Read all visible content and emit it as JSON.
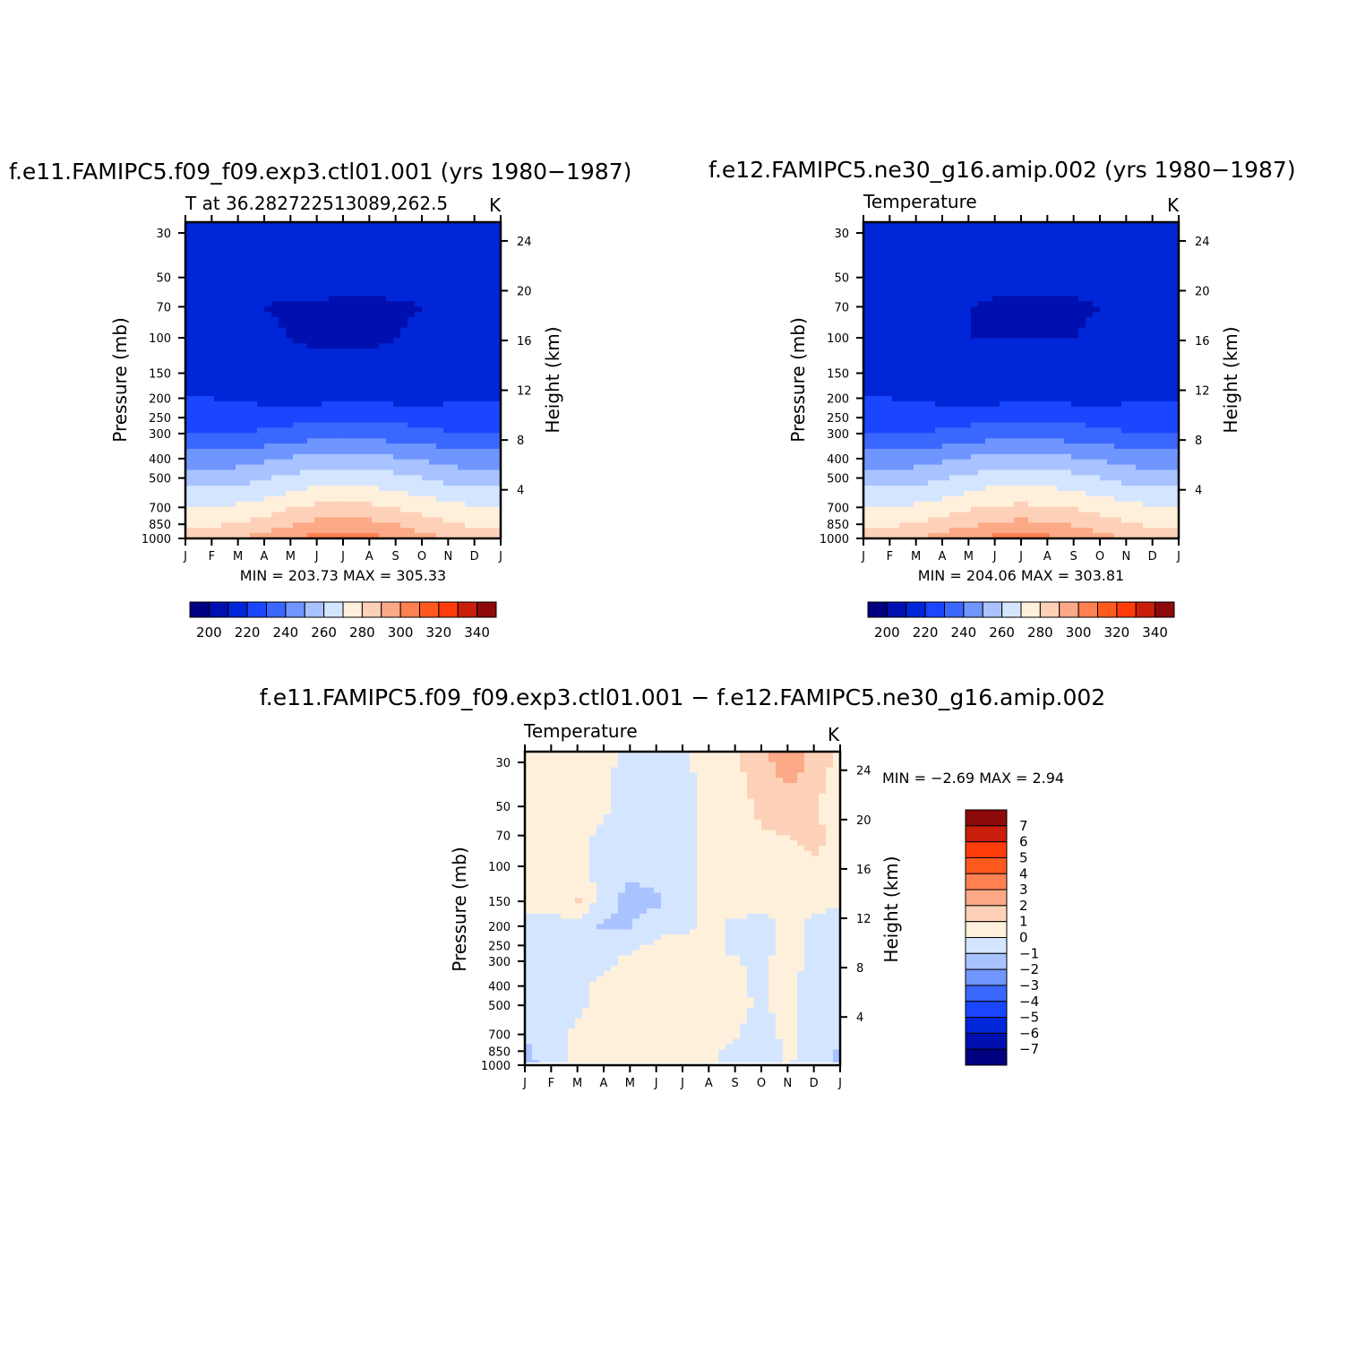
{
  "chart_data": [
    {
      "type": "contour",
      "title": "f.e11.FAMIPC5.f09_f09.exp3.ctl01.001 (yrs 1980−1987)",
      "subtitle_left": "T at 36.282722513089,262.5",
      "subtitle_right": "K",
      "ylabel": "Pressure (mb)",
      "ylabel_right": "Height (km)",
      "x_ticks": [
        "J",
        "F",
        "M",
        "A",
        "M",
        "J",
        "J",
        "A",
        "S",
        "O",
        "N",
        "D",
        "J"
      ],
      "y_ticks": [
        "30",
        "50",
        "70",
        "100",
        "150",
        "200",
        "250",
        "300",
        "400",
        "500",
        "700",
        "850",
        "1000"
      ],
      "y_right_ticks": [
        "24",
        "20",
        "16",
        "12",
        "8",
        "4"
      ],
      "stats": "MIN = 203.73 MAX = 305.33",
      "min": 203.73,
      "max": 305.33,
      "colorbar_labels": [
        "200",
        "220",
        "240",
        "260",
        "280",
        "300",
        "320",
        "340"
      ],
      "contour_levels": [
        195,
        200,
        205,
        210,
        215,
        220,
        225,
        230,
        235,
        240,
        245,
        250,
        255,
        260,
        265,
        270,
        275,
        280,
        285,
        290,
        295,
        300,
        305
      ],
      "profile": [
        {
          "p": 30,
          "values": [
            214,
            214,
            214,
            214,
            214,
            213,
            213,
            213,
            214,
            214,
            214,
            214,
            214
          ]
        },
        {
          "p": 50,
          "values": [
            211,
            211,
            210,
            208,
            208,
            208,
            207,
            207,
            208,
            209,
            210,
            211,
            211
          ]
        },
        {
          "p": 70,
          "values": [
            207,
            206,
            207,
            205,
            204,
            204,
            204,
            204,
            204,
            205,
            206,
            207,
            207
          ]
        },
        {
          "p": 100,
          "values": [
            210,
            209,
            208,
            206,
            205,
            204,
            204,
            204,
            205,
            206,
            207,
            208,
            209
          ]
        },
        {
          "p": 150,
          "values": [
            212,
            212,
            211,
            209,
            207,
            207,
            207,
            207,
            207,
            208,
            209,
            210,
            212
          ]
        },
        {
          "p": 200,
          "values": [
            215,
            215,
            214,
            213,
            212,
            212,
            212,
            212,
            212,
            212,
            213,
            214,
            215
          ]
        },
        {
          "p": 250,
          "values": [
            219,
            219,
            219,
            219,
            221,
            222,
            223,
            223,
            222,
            221,
            220,
            219,
            219
          ]
        },
        {
          "p": 300,
          "values": [
            225,
            225,
            225,
            227,
            229,
            231,
            232,
            231,
            230,
            228,
            226,
            225,
            225
          ]
        },
        {
          "p": 400,
          "values": [
            239,
            239,
            240,
            243,
            246,
            248,
            249,
            248,
            246,
            244,
            241,
            239,
            239
          ]
        },
        {
          "p": 500,
          "values": [
            250,
            250,
            251,
            254,
            257,
            260,
            261,
            260,
            258,
            255,
            252,
            250,
            250
          ]
        },
        {
          "p": 700,
          "values": [
            265,
            265,
            267,
            270,
            274,
            277,
            278,
            277,
            274,
            271,
            268,
            266,
            265
          ]
        },
        {
          "p": 850,
          "values": [
            273,
            273,
            276,
            279,
            284,
            288,
            289,
            288,
            285,
            280,
            276,
            274,
            273
          ]
        },
        {
          "p": 1000,
          "values": [
            280,
            281,
            284,
            289,
            294,
            298,
            300,
            298,
            294,
            289,
            284,
            281,
            280
          ]
        }
      ]
    },
    {
      "type": "contour",
      "title": "f.e12.FAMIPC5.ne30_g16.amip.002 (yrs 1980−1987)",
      "subtitle_left": "Temperature",
      "subtitle_right": "K",
      "ylabel": "Pressure (mb)",
      "ylabel_right": "Height (km)",
      "x_ticks": [
        "J",
        "F",
        "M",
        "A",
        "M",
        "J",
        "J",
        "A",
        "S",
        "O",
        "N",
        "D",
        "J"
      ],
      "y_ticks": [
        "30",
        "50",
        "70",
        "100",
        "150",
        "200",
        "250",
        "300",
        "400",
        "500",
        "700",
        "850",
        "1000"
      ],
      "y_right_ticks": [
        "24",
        "20",
        "16",
        "12",
        "8",
        "4"
      ],
      "stats": "MIN = 204.06 MAX = 303.81",
      "min": 204.06,
      "max": 303.81,
      "colorbar_labels": [
        "200",
        "220",
        "240",
        "260",
        "280",
        "300",
        "320",
        "340"
      ],
      "contour_levels": [
        195,
        200,
        205,
        210,
        215,
        220,
        225,
        230,
        235,
        240,
        245,
        250,
        255,
        260,
        265,
        270,
        275,
        280,
        285,
        290,
        295,
        300,
        305
      ],
      "profile": [
        {
          "p": 30,
          "values": [
            214,
            214,
            214,
            214,
            214,
            213,
            213,
            213,
            214,
            214,
            214,
            214,
            214
          ]
        },
        {
          "p": 50,
          "values": [
            210,
            210,
            209,
            208,
            208,
            207,
            207,
            207,
            207,
            208,
            209,
            209,
            210
          ]
        },
        {
          "p": 70,
          "values": [
            206,
            206,
            206,
            205,
            205,
            204,
            204,
            204,
            204,
            205,
            205,
            206,
            206
          ]
        },
        {
          "p": 100,
          "values": [
            210,
            209,
            209,
            207,
            205,
            205,
            205,
            205,
            205,
            206,
            207,
            208,
            209
          ]
        },
        {
          "p": 150,
          "values": [
            212,
            212,
            212,
            210,
            208,
            207,
            207,
            207,
            207,
            208,
            209,
            210,
            212
          ]
        },
        {
          "p": 200,
          "values": [
            215,
            215,
            214,
            213,
            212,
            212,
            212,
            212,
            212,
            212,
            213,
            214,
            215
          ]
        },
        {
          "p": 250,
          "values": [
            219,
            219,
            219,
            219,
            221,
            222,
            223,
            223,
            222,
            221,
            220,
            219,
            219
          ]
        },
        {
          "p": 300,
          "values": [
            225,
            225,
            225,
            227,
            229,
            231,
            232,
            231,
            230,
            228,
            226,
            225,
            225
          ]
        },
        {
          "p": 400,
          "values": [
            239,
            239,
            240,
            243,
            246,
            248,
            249,
            248,
            246,
            244,
            241,
            239,
            239
          ]
        },
        {
          "p": 500,
          "values": [
            250,
            250,
            251,
            254,
            257,
            260,
            261,
            260,
            258,
            255,
            252,
            250,
            250
          ]
        },
        {
          "p": 700,
          "values": [
            265,
            265,
            267,
            270,
            274,
            276,
            277,
            276,
            274,
            271,
            268,
            266,
            265
          ]
        },
        {
          "p": 850,
          "values": [
            273,
            273,
            276,
            279,
            283,
            287,
            288,
            287,
            284,
            280,
            276,
            274,
            273
          ]
        },
        {
          "p": 1000,
          "values": [
            280,
            281,
            284,
            289,
            293,
            297,
            298,
            297,
            293,
            289,
            284,
            281,
            280
          ]
        }
      ]
    },
    {
      "type": "contour",
      "title": "f.e11.FAMIPC5.f09_f09.exp3.ctl01.001 − f.e12.FAMIPC5.ne30_g16.amip.002",
      "subtitle_left": "Temperature",
      "subtitle_right": "K",
      "ylabel": "Pressure (mb)",
      "ylabel_right": "Height (km)",
      "x_ticks": [
        "J",
        "F",
        "M",
        "A",
        "M",
        "J",
        "J",
        "A",
        "S",
        "O",
        "N",
        "D",
        "J"
      ],
      "y_ticks": [
        "30",
        "50",
        "70",
        "100",
        "150",
        "200",
        "250",
        "300",
        "400",
        "500",
        "700",
        "850",
        "1000"
      ],
      "y_right_ticks": [
        "24",
        "20",
        "16",
        "12",
        "8",
        "4"
      ],
      "stats": "MIN =  −2.69 MAX =    2.94",
      "min": -2.69,
      "max": 2.94,
      "colorbar_labels": [
        "7",
        "6",
        "5",
        "4",
        "3",
        "2",
        "1",
        "0",
        "−1",
        "−2",
        "−3",
        "−4",
        "−5",
        "−6",
        "−7"
      ],
      "contour_levels": [
        -7,
        -6,
        -5,
        -4,
        -3,
        -2,
        -1,
        0,
        1,
        2,
        3,
        4,
        5,
        6,
        7
      ],
      "profile": [
        {
          "p": 30,
          "values": [
            0.5,
            0.6,
            0.5,
            0.3,
            -0.4,
            -0.5,
            -0.3,
            0.5,
            0.8,
            1.6,
            2.6,
            1.8,
            0.5
          ]
        },
        {
          "p": 50,
          "values": [
            0.3,
            0.5,
            0.9,
            0.2,
            -0.5,
            -0.6,
            -0.4,
            0.3,
            0.6,
            1.2,
            1.5,
            1.1,
            0.4
          ]
        },
        {
          "p": 70,
          "values": [
            0.4,
            0.5,
            0.4,
            -0.3,
            -0.6,
            -0.5,
            -0.3,
            0.2,
            0.6,
            0.9,
            1.0,
            1.2,
            0.8
          ]
        },
        {
          "p": 100,
          "values": [
            0.5,
            0.4,
            0.5,
            -0.5,
            -0.8,
            -0.6,
            -0.3,
            0.3,
            0.5,
            0.8,
            0.6,
            0.9,
            0.6
          ]
        },
        {
          "p": 150,
          "values": [
            0.3,
            0.4,
            1.1,
            -0.6,
            -1.3,
            -1.2,
            -0.4,
            0.2,
            0.4,
            0.6,
            0.4,
            0.3,
            0.2
          ]
        },
        {
          "p": 200,
          "values": [
            -0.3,
            -0.4,
            -0.3,
            -1.2,
            -1.1,
            -0.3,
            -0.2,
            0.2,
            -0.2,
            -0.5,
            0.3,
            -0.3,
            -0.5
          ]
        },
        {
          "p": 250,
          "values": [
            -0.6,
            -0.5,
            -0.4,
            -0.6,
            -0.3,
            0.2,
            0.3,
            0.2,
            -0.2,
            -0.4,
            0.4,
            -0.4,
            -0.6
          ]
        },
        {
          "p": 300,
          "values": [
            -0.9,
            -0.6,
            -0.4,
            -0.3,
            0.3,
            0.4,
            0.3,
            0.2,
            0.1,
            -0.3,
            0.6,
            -0.5,
            -0.8
          ]
        },
        {
          "p": 400,
          "values": [
            -1.0,
            -0.5,
            -0.3,
            0.3,
            0.4,
            0.5,
            0.3,
            0.3,
            0.2,
            -0.2,
            0.3,
            -0.4,
            -0.9
          ]
        },
        {
          "p": 500,
          "values": [
            -0.9,
            -0.4,
            -0.2,
            0.4,
            0.5,
            0.4,
            0.3,
            0.4,
            0.2,
            -0.1,
            0.3,
            -0.3,
            -0.9
          ]
        },
        {
          "p": 700,
          "values": [
            -0.8,
            -0.3,
            0.2,
            0.4,
            0.5,
            0.4,
            0.3,
            0.3,
            0.1,
            -0.4,
            0.2,
            -0.3,
            -0.8
          ]
        },
        {
          "p": 850,
          "values": [
            -1.2,
            -0.5,
            0.3,
            0.4,
            0.5,
            0.3,
            0.4,
            0.3,
            -0.3,
            -0.5,
            0.2,
            -0.4,
            -1.1
          ]
        },
        {
          "p": 1000,
          "values": [
            -1.4,
            -0.6,
            0.2,
            0.3,
            0.4,
            0.2,
            0.6,
            0.3,
            -0.4,
            -0.5,
            0.1,
            -0.6,
            -1.3
          ]
        }
      ]
    }
  ],
  "colors": {
    "abs_colorbar": [
      "#000080",
      "#0010b0",
      "#0026d8",
      "#1a46ff",
      "#3a68ff",
      "#6f95ff",
      "#a8c3ff",
      "#d4e6ff",
      "#fff0dc",
      "#fdd1b8",
      "#fca987",
      "#ff8050",
      "#ff5a1e",
      "#ff3c0a",
      "#c81e0a",
      "#8c0a0a"
    ],
    "diff_colorbar": [
      "#8c0a0a",
      "#c81e0a",
      "#ff3c0a",
      "#ff5a1e",
      "#ff8050",
      "#fca987",
      "#fdd1b8",
      "#fff0dc",
      "#d4e6ff",
      "#a8c3ff",
      "#6f95ff",
      "#3a68ff",
      "#1a46ff",
      "#0026d8",
      "#0010b0",
      "#000080"
    ]
  }
}
